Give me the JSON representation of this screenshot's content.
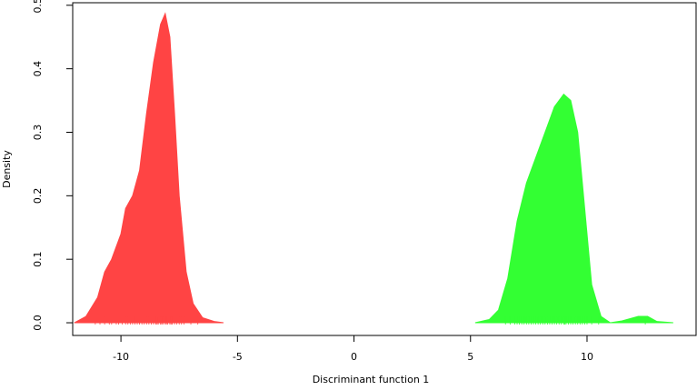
{
  "chart_data": {
    "type": "density",
    "xlabel": "Discriminant function 1",
    "ylabel": "Density",
    "xlim": [
      -12.07,
      14.68
    ],
    "ylim": [
      -0.02,
      0.504
    ],
    "xticks": [
      -10,
      -5,
      0,
      5,
      10
    ],
    "yticks": [
      {
        "value": 0,
        "label": "0.0"
      },
      0.1,
      0.2,
      0.3,
      0.4,
      0.5
    ],
    "series": [
      {
        "color": "#ff4444",
        "x": [
          -12.0,
          -11.5,
          -11.0,
          -10.7,
          -10.4,
          -10.0,
          -9.8,
          -9.5,
          -9.2,
          -8.9,
          -8.6,
          -8.3,
          -8.1,
          -7.9,
          -7.7,
          -7.5,
          -7.2,
          -6.9,
          -6.5,
          -6.0,
          -5.6
        ],
        "values": [
          0,
          0.01,
          0.04,
          0.08,
          0.1,
          0.14,
          0.18,
          0.2,
          0.24,
          0.33,
          0.41,
          0.47,
          0.487,
          0.45,
          0.33,
          0.2,
          0.08,
          0.03,
          0.008,
          0.002,
          0
        ],
        "rug": [
          -11.1,
          -10.9,
          -10.7,
          -10.5,
          -10.4,
          -10.2,
          -10.1,
          -9.95,
          -9.8,
          -9.7,
          -9.6,
          -9.5,
          -9.4,
          -9.3,
          -9.2,
          -9.1,
          -9.0,
          -8.9,
          -8.8,
          -8.7,
          -8.6,
          -8.5,
          -8.45,
          -8.4,
          -8.3,
          -8.25,
          -8.2,
          -8.1,
          -8.05,
          -8.0,
          -7.9,
          -7.85,
          -7.8,
          -7.7,
          -7.6,
          -7.5,
          -7.4,
          -7.3,
          -7.0,
          -6.7
        ]
      },
      {
        "color": "#33ff33",
        "x": [
          5.2,
          5.8,
          6.2,
          6.6,
          7.0,
          7.4,
          7.8,
          8.2,
          8.6,
          9.0,
          9.3,
          9.6,
          9.9,
          10.2,
          10.6,
          11.0,
          11.5,
          12.2,
          12.6,
          13.0,
          13.7
        ],
        "values": [
          0,
          0.005,
          0.02,
          0.07,
          0.16,
          0.22,
          0.26,
          0.3,
          0.34,
          0.36,
          0.35,
          0.3,
          0.18,
          0.06,
          0.01,
          0,
          0.003,
          0.01,
          0.01,
          0.002,
          0
        ],
        "rug": [
          6.5,
          6.7,
          6.9,
          7.0,
          7.1,
          7.2,
          7.3,
          7.4,
          7.5,
          7.6,
          7.7,
          7.8,
          7.9,
          8.0,
          8.1,
          8.2,
          8.3,
          8.4,
          8.5,
          8.6,
          8.7,
          8.8,
          8.9,
          9.0,
          9.05,
          9.1,
          9.2,
          9.3,
          9.4,
          9.5,
          9.6,
          9.7,
          9.8,
          9.9,
          10.0,
          10.2,
          10.5,
          12.5
        ]
      }
    ]
  }
}
